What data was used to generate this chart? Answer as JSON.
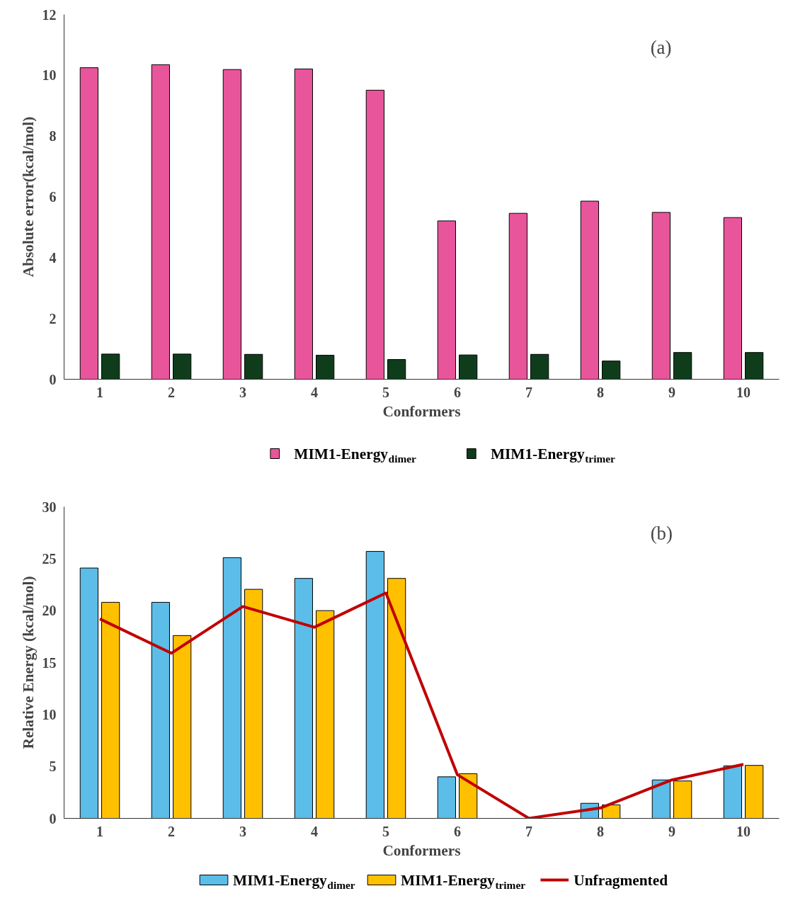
{
  "chart_data": [
    {
      "type": "bar",
      "xlabel": "Conformers",
      "ylabel": "Absolute error(kcal/mol)",
      "categories": [
        "1",
        "2",
        "3",
        "4",
        "5",
        "6",
        "7",
        "8",
        "9",
        "10"
      ],
      "ylim": [
        0,
        12
      ],
      "yticks": [
        0,
        2,
        4,
        6,
        8,
        10,
        12
      ],
      "grid": false,
      "legend": "bottom",
      "annotations": [
        "(a)"
      ],
      "series": [
        {
          "name": "MIM1-Energy$_{dimer}$",
          "color": "#e8559a",
          "values": [
            10.25,
            10.35,
            10.19,
            10.21,
            9.51,
            5.21,
            5.46,
            5.86,
            5.49,
            5.32
          ]
        },
        {
          "name": "MIM1-Energy$_{trimer}$",
          "color": "#0f3d1c",
          "values": [
            0.83,
            0.83,
            0.82,
            0.79,
            0.65,
            0.8,
            0.82,
            0.6,
            0.88,
            0.88
          ]
        }
      ]
    },
    {
      "type": "bar",
      "xlabel": "Conformers",
      "ylabel": "Relative Energy (kcal/mol)",
      "categories": [
        "1",
        "2",
        "3",
        "4",
        "5",
        "6",
        "7",
        "8",
        "9",
        "10"
      ],
      "ylim": [
        0,
        30
      ],
      "yticks": [
        0,
        5,
        10,
        15,
        20,
        25,
        30
      ],
      "grid": false,
      "legend": "bottom",
      "annotations": [
        "(b)"
      ],
      "series": [
        {
          "name": "MIM1-Energy$_{dimer}$",
          "color": "#5bbde8",
          "values": [
            24.1,
            20.8,
            25.1,
            23.1,
            25.7,
            4.0,
            0,
            1.45,
            3.7,
            5.06
          ]
        },
        {
          "name": "MIM1-Energy$_{trimer}$",
          "color": "#ffc000",
          "values": [
            20.8,
            17.6,
            22.05,
            20.0,
            23.1,
            4.3,
            0,
            1.3,
            3.6,
            5.1
          ]
        },
        {
          "name": "Unfragmented",
          "type": "line",
          "color": "#c00000",
          "values": [
            19.2,
            15.9,
            20.4,
            18.4,
            21.7,
            4.2,
            0,
            1.0,
            3.7,
            5.2
          ]
        }
      ]
    }
  ]
}
